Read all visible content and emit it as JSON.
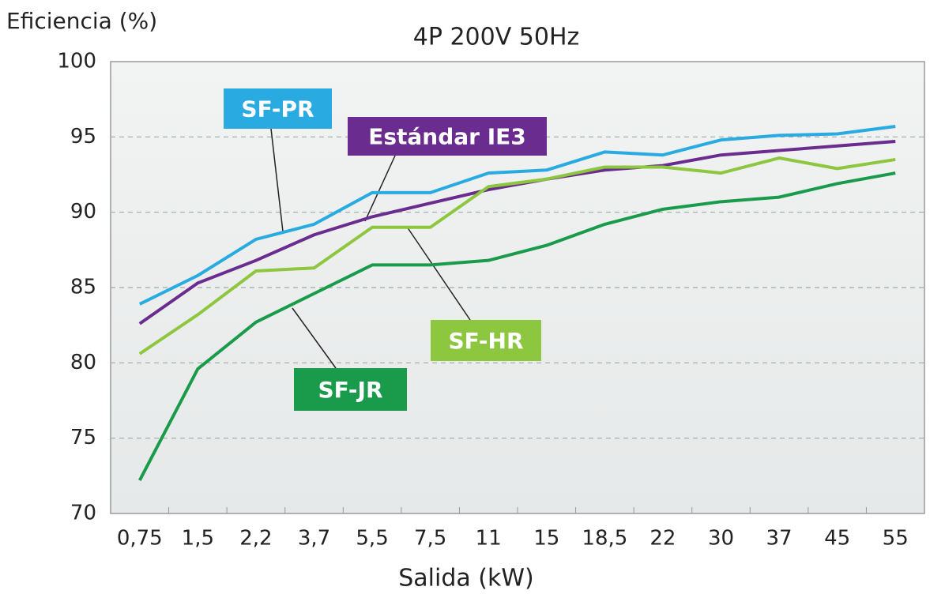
{
  "chart_data": {
    "type": "line",
    "title": "4P 200V 50Hz",
    "ylabel": "Eficiencia (%)",
    "xlabel": "Salida (kW)",
    "categories": [
      "0,75",
      "1,5",
      "2,2",
      "3,7",
      "5,5",
      "7,5",
      "11",
      "15",
      "18,5",
      "22",
      "30",
      "37",
      "45",
      "55"
    ],
    "ylim": [
      70,
      100
    ],
    "yticks": [
      70,
      75,
      80,
      85,
      90,
      95,
      100
    ],
    "grid": true,
    "series": [
      {
        "name": "SF-PR",
        "color": "#29abe2",
        "values": [
          83.9,
          85.8,
          88.2,
          89.2,
          91.3,
          91.3,
          92.6,
          92.8,
          94.0,
          93.8,
          94.8,
          95.1,
          95.2,
          95.7
        ]
      },
      {
        "name": "Estándar IE3",
        "color": "#6a2c8e",
        "values": [
          82.6,
          85.3,
          86.8,
          88.5,
          89.7,
          90.6,
          91.5,
          92.2,
          92.8,
          93.1,
          93.8,
          94.1,
          94.4,
          94.7
        ]
      },
      {
        "name": "SF-HR",
        "color": "#8dc63f",
        "values": [
          80.6,
          83.2,
          86.1,
          86.3,
          89.0,
          89.0,
          91.7,
          92.2,
          93.0,
          93.0,
          92.6,
          93.6,
          92.9,
          93.5
        ]
      },
      {
        "name": "SF-JR",
        "color": "#1a9b4b",
        "values": [
          72.2,
          79.6,
          82.7,
          84.6,
          86.5,
          86.5,
          86.8,
          87.8,
          89.2,
          90.2,
          90.7,
          91.0,
          91.9,
          92.6
        ]
      }
    ]
  }
}
